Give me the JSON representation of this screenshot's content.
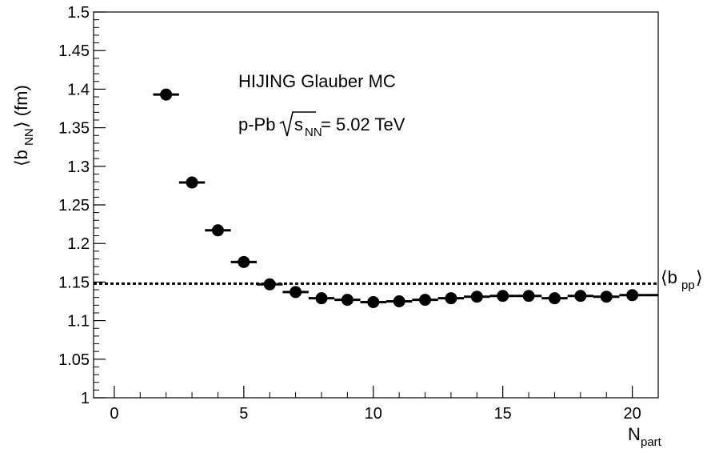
{
  "chart_data": {
    "type": "scatter",
    "xlabel": "N",
    "xlabel_sub": "part",
    "ylabel_open": "⟨b",
    "ylabel_sub": "NN",
    "ylabel_close": "⟩ (fm)",
    "xlim": [
      -0.8,
      21
    ],
    "ylim": [
      1.0,
      1.5
    ],
    "xticks": [
      0,
      5,
      10,
      15,
      20
    ],
    "xtick_labels": [
      "0",
      "5",
      "10",
      "15",
      "20"
    ],
    "yticks": [
      1.0,
      1.05,
      1.1,
      1.15,
      1.2,
      1.25,
      1.3,
      1.35,
      1.4,
      1.45,
      1.5
    ],
    "ytick_labels": [
      "1",
      "1.05",
      "1.1",
      "1.15",
      "1.2",
      "1.25",
      "1.3",
      "1.35",
      "1.4",
      "1.45",
      "1.5"
    ],
    "grid": false,
    "annotations": {
      "line1": "HIJING Glauber MC",
      "line2_prefix": "p-Pb",
      "sqrt_s": "s",
      "sqrt_sub": "NN",
      "line2_suffix": "= 5.02 TeV"
    },
    "reference_line": {
      "y": 1.148,
      "label_open": "⟨b",
      "label_sub": "pp",
      "label_close": "⟩"
    },
    "series": [
      {
        "x": [
          2,
          3,
          4,
          5,
          6,
          7,
          8,
          9,
          10,
          11,
          12,
          13,
          14,
          15,
          16,
          17,
          18,
          19,
          20
        ],
        "y": [
          1.393,
          1.279,
          1.217,
          1.176,
          1.147,
          1.137,
          1.129,
          1.127,
          1.124,
          1.125,
          1.127,
          1.129,
          1.131,
          1.132,
          1.132,
          1.129,
          1.132,
          1.131,
          1.133
        ],
        "x_err": 0.5
      }
    ],
    "overflow_segment": {
      "x": [
        20.5,
        21
      ],
      "y": [
        1.133,
        1.133
      ]
    }
  }
}
